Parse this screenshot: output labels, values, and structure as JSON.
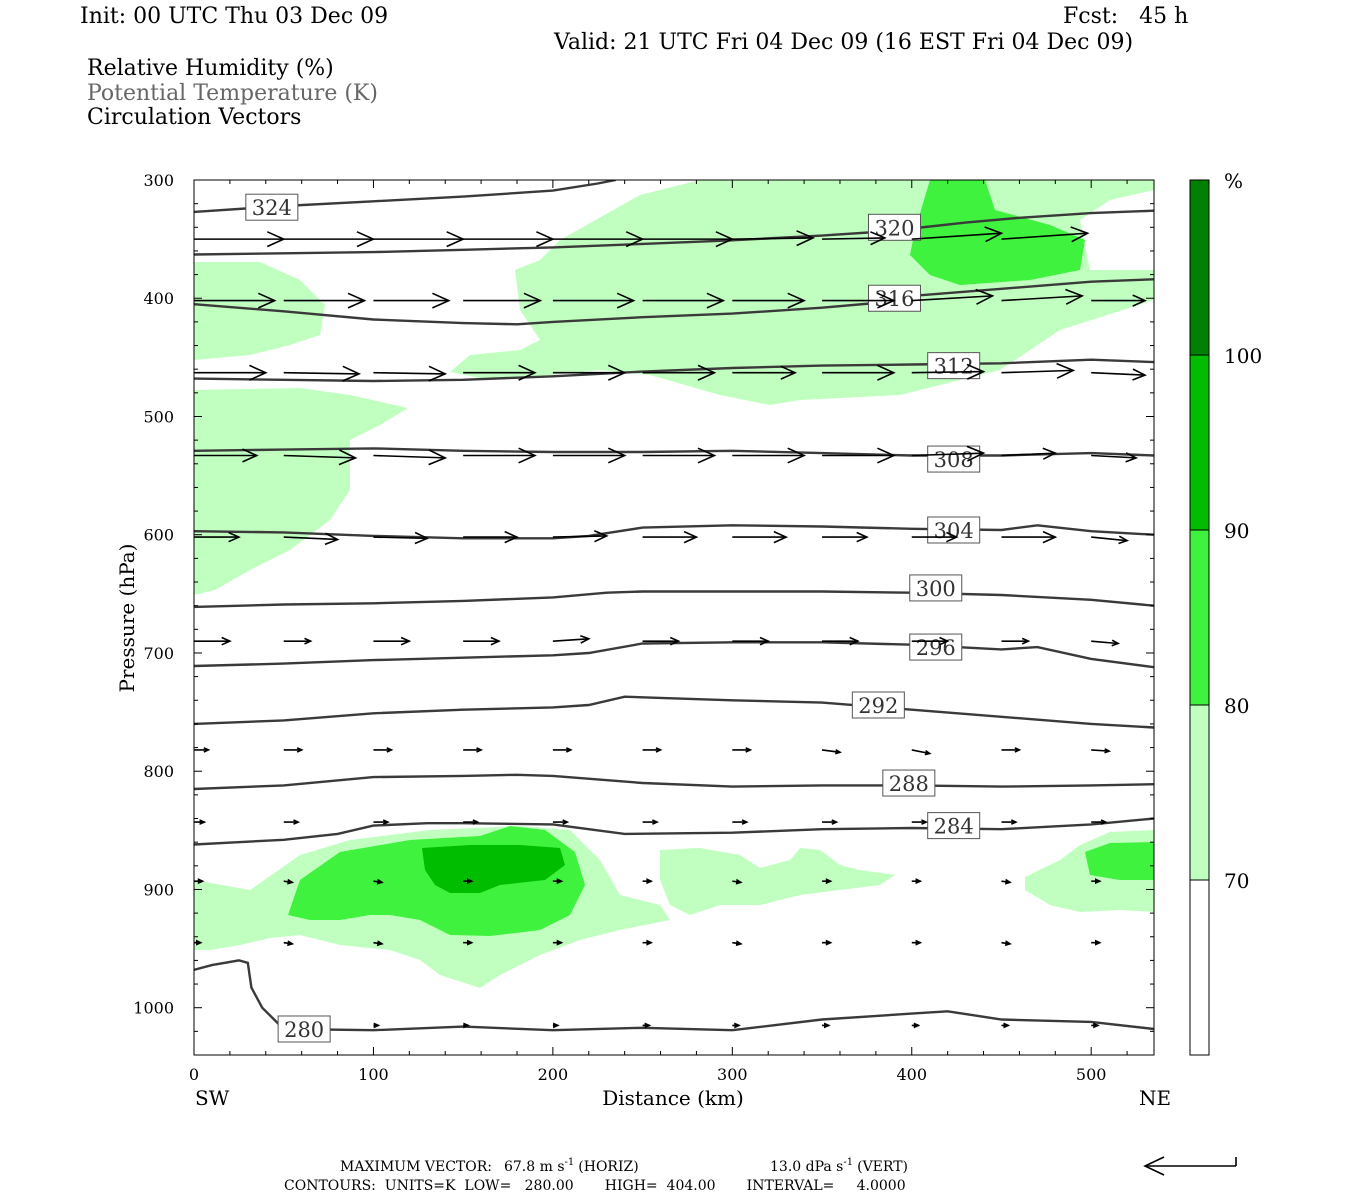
{
  "header": {
    "init": "Init: 00 UTC Thu 03 Dec 09",
    "fcst": "Fcst:   45 h",
    "valid": "Valid: 21 UTC Fri 04 Dec 09 (16 EST Fri 04 Dec 09)",
    "field_1": "Relative Humidity (%)",
    "field_2": "Potential Temperature (K)",
    "field_3": "Circulation Vectors"
  },
  "footer": {
    "max_vector_label": "MAXIMUM VECTOR:",
    "max_horiz": "67.8 m s",
    "horiz_unit": "(HORIZ)",
    "max_vert": "13.0 dPa s",
    "vert_unit": "(VERT)",
    "exponent": "-1",
    "contours_line": "CONTOURS:  UNITS=K  LOW=   280.00       HIGH=  404.00       INTERVAL=     4.0000"
  },
  "colors": {
    "rh_70_80": "#c0ffc0",
    "rh_80_90": "#3ef23e",
    "rh_90_100": "#00bd00",
    "rh_100": "#007f00",
    "theta_line": "#3a3a3a",
    "vector": "#000000"
  },
  "chart_data": {
    "type": "cross-section (contour + shaded + vectors)",
    "x_axis": {
      "label": "Distance (km)",
      "range": [
        0,
        535
      ],
      "ticks": [
        0,
        100,
        200,
        300,
        400,
        500
      ],
      "left_end_label": "SW",
      "right_end_label": "NE"
    },
    "y_axis": {
      "label": "Pressure (hPa)",
      "range": [
        300,
        1040
      ],
      "inverted": true,
      "ticks": [
        300,
        400,
        500,
        600,
        700,
        800,
        900,
        1000
      ]
    },
    "colorbar": {
      "unit": "%",
      "levels": [
        70,
        80,
        90,
        100
      ]
    },
    "theta_contours": [
      {
        "level": 324,
        "label": "324",
        "label_at": [
          30,
          323
        ],
        "points": [
          [
            0,
            327
          ],
          [
            50,
            322
          ],
          [
            100,
            318
          ],
          [
            150,
            314
          ],
          [
            200,
            309
          ],
          [
            225,
            303
          ],
          [
            235,
            300
          ]
        ]
      },
      {
        "level": 320,
        "label": "320",
        "label_at": [
          377,
          340
        ],
        "points": [
          [
            0,
            363
          ],
          [
            50,
            362
          ],
          [
            100,
            361
          ],
          [
            150,
            359
          ],
          [
            200,
            357
          ],
          [
            250,
            354
          ],
          [
            300,
            351
          ],
          [
            350,
            347
          ],
          [
            380,
            344
          ],
          [
            400,
            341
          ],
          [
            430,
            336
          ],
          [
            460,
            332
          ],
          [
            500,
            328
          ],
          [
            535,
            326
          ]
        ]
      },
      {
        "level": 316,
        "label": "316",
        "label_at": [
          377,
          400
        ],
        "points": [
          [
            0,
            405
          ],
          [
            50,
            411
          ],
          [
            100,
            418
          ],
          [
            150,
            421
          ],
          [
            180,
            422
          ],
          [
            200,
            420
          ],
          [
            250,
            416
          ],
          [
            300,
            413
          ],
          [
            350,
            408
          ],
          [
            380,
            404
          ],
          [
            400,
            398
          ],
          [
            450,
            392
          ],
          [
            500,
            386
          ],
          [
            535,
            384
          ]
        ]
      },
      {
        "level": 312,
        "label": "312",
        "label_at": [
          410,
          457
        ],
        "points": [
          [
            0,
            468
          ],
          [
            50,
            469
          ],
          [
            100,
            470
          ],
          [
            150,
            469
          ],
          [
            200,
            466
          ],
          [
            250,
            462
          ],
          [
            300,
            459
          ],
          [
            350,
            457
          ],
          [
            400,
            456
          ],
          [
            450,
            455
          ],
          [
            500,
            452
          ],
          [
            535,
            454
          ]
        ]
      },
      {
        "level": 308,
        "label": "308",
        "label_at": [
          410,
          536
        ],
        "points": [
          [
            0,
            529
          ],
          [
            50,
            528
          ],
          [
            100,
            527
          ],
          [
            150,
            529
          ],
          [
            200,
            530
          ],
          [
            250,
            530
          ],
          [
            300,
            529
          ],
          [
            350,
            531
          ],
          [
            400,
            533
          ],
          [
            450,
            533
          ],
          [
            500,
            531
          ],
          [
            535,
            533
          ]
        ]
      },
      {
        "level": 304,
        "label": "304",
        "label_at": [
          410,
          596
        ],
        "points": [
          [
            0,
            597
          ],
          [
            50,
            598
          ],
          [
            100,
            601
          ],
          [
            150,
            603
          ],
          [
            200,
            603
          ],
          [
            220,
            601
          ],
          [
            250,
            594
          ],
          [
            300,
            592
          ],
          [
            350,
            593
          ],
          [
            400,
            595
          ],
          [
            450,
            596
          ],
          [
            470,
            592
          ],
          [
            500,
            597
          ],
          [
            535,
            600
          ]
        ]
      },
      {
        "level": 300,
        "label": "300",
        "label_at": [
          400,
          645
        ],
        "points": [
          [
            0,
            661
          ],
          [
            50,
            659
          ],
          [
            100,
            658
          ],
          [
            150,
            656
          ],
          [
            200,
            653
          ],
          [
            230,
            649
          ],
          [
            250,
            648
          ],
          [
            300,
            648
          ],
          [
            350,
            648
          ],
          [
            400,
            649
          ],
          [
            450,
            651
          ],
          [
            500,
            655
          ],
          [
            535,
            660
          ]
        ]
      },
      {
        "level": 296,
        "label": "296",
        "label_at": [
          400,
          695
        ],
        "points": [
          [
            0,
            711
          ],
          [
            50,
            709
          ],
          [
            100,
            706
          ],
          [
            150,
            704
          ],
          [
            200,
            702
          ],
          [
            220,
            700
          ],
          [
            250,
            692
          ],
          [
            300,
            691
          ],
          [
            350,
            691
          ],
          [
            400,
            693
          ],
          [
            450,
            697
          ],
          [
            470,
            695
          ],
          [
            500,
            705
          ],
          [
            535,
            712
          ]
        ]
      },
      {
        "level": 292,
        "label": "292",
        "label_at": [
          368,
          744
        ],
        "points": [
          [
            0,
            760
          ],
          [
            50,
            757
          ],
          [
            100,
            751
          ],
          [
            150,
            748
          ],
          [
            200,
            746
          ],
          [
            220,
            744
          ],
          [
            240,
            737
          ],
          [
            260,
            738
          ],
          [
            300,
            740
          ],
          [
            350,
            742
          ],
          [
            400,
            748
          ],
          [
            450,
            754
          ],
          [
            500,
            760
          ],
          [
            535,
            763
          ]
        ]
      },
      {
        "level": 288,
        "label": "288",
        "label_at": [
          385,
          810
        ],
        "points": [
          [
            0,
            815
          ],
          [
            50,
            812
          ],
          [
            100,
            805
          ],
          [
            150,
            804
          ],
          [
            180,
            803
          ],
          [
            200,
            804
          ],
          [
            250,
            810
          ],
          [
            300,
            813
          ],
          [
            350,
            812
          ],
          [
            400,
            812
          ],
          [
            450,
            813
          ],
          [
            500,
            812
          ],
          [
            535,
            811
          ]
        ]
      },
      {
        "level": 284,
        "label": "284",
        "label_at": [
          410,
          846
        ],
        "points": [
          [
            0,
            862
          ],
          [
            50,
            858
          ],
          [
            80,
            853
          ],
          [
            100,
            846
          ],
          [
            130,
            844
          ],
          [
            150,
            844
          ],
          [
            200,
            845
          ],
          [
            240,
            853
          ],
          [
            300,
            852
          ],
          [
            350,
            849
          ],
          [
            400,
            848
          ],
          [
            450,
            849
          ],
          [
            500,
            845
          ],
          [
            535,
            840
          ]
        ]
      },
      {
        "level": 280,
        "label": "280",
        "label_at": [
          48,
          1018
        ],
        "points": [
          [
            0,
            968
          ],
          [
            10,
            964
          ],
          [
            25,
            960
          ],
          [
            30,
            962
          ],
          [
            32,
            983
          ],
          [
            38,
            1000
          ],
          [
            50,
            1018
          ],
          [
            100,
            1019
          ],
          [
            150,
            1016
          ],
          [
            200,
            1019
          ],
          [
            250,
            1017
          ],
          [
            300,
            1019
          ],
          [
            350,
            1010
          ],
          [
            400,
            1005
          ],
          [
            420,
            1003
          ],
          [
            450,
            1010
          ],
          [
            500,
            1012
          ],
          [
            535,
            1018
          ]
        ]
      }
    ],
    "vector_rows": [
      {
        "p": 350,
        "x": [
          0,
          50,
          100,
          150,
          200,
          250,
          300,
          350,
          400,
          450,
          500
        ],
        "dx": [
          50,
          50,
          50,
          50,
          50,
          50,
          45,
          35,
          50,
          48,
          0
        ],
        "dy": [
          0,
          0,
          0,
          0,
          0,
          0,
          -1,
          -1,
          -5,
          -5,
          0
        ]
      },
      {
        "p": 402,
        "x": [
          0,
          50,
          100,
          150,
          200,
          250,
          300,
          350,
          400,
          450,
          500
        ],
        "dx": [
          45,
          45,
          42,
          43,
          45,
          45,
          40,
          40,
          45,
          45,
          30
        ],
        "dy": [
          0,
          0,
          0,
          0,
          0,
          0,
          0,
          0,
          -4,
          -4,
          0
        ]
      },
      {
        "p": 463,
        "x": [
          0,
          50,
          100,
          150,
          200,
          250,
          300,
          350,
          400,
          450,
          500
        ],
        "dx": [
          40,
          42,
          40,
          40,
          40,
          40,
          35,
          40,
          40,
          40,
          30
        ],
        "dy": [
          0,
          1,
          1,
          0,
          0,
          0,
          0,
          0,
          -1,
          -2,
          2
        ]
      },
      {
        "p": 533,
        "x": [
          0,
          50,
          100,
          150,
          200,
          250,
          300,
          350,
          400,
          450,
          500
        ],
        "dx": [
          35,
          40,
          40,
          40,
          40,
          40,
          40,
          40,
          40,
          30,
          25
        ],
        "dy": [
          0,
          2,
          2,
          0,
          0,
          0,
          0,
          0,
          -2,
          -2,
          2
        ]
      },
      {
        "p": 602,
        "x": [
          0,
          50,
          100,
          150,
          200,
          250,
          300,
          350,
          400,
          450,
          500
        ],
        "dx": [
          25,
          30,
          30,
          30,
          30,
          30,
          30,
          25,
          25,
          30,
          20
        ],
        "dy": [
          0,
          2,
          1,
          0,
          -1,
          0,
          0,
          0,
          0,
          0,
          3
        ]
      },
      {
        "p": 690,
        "x": [
          0,
          50,
          100,
          150,
          200,
          250,
          300,
          350,
          400,
          450,
          500
        ],
        "dx": [
          20,
          15,
          20,
          20,
          20,
          20,
          20,
          20,
          20,
          15,
          15
        ],
        "dy": [
          0,
          0,
          0,
          0,
          -2,
          0,
          0,
          0,
          0,
          0,
          2
        ]
      },
      {
        "p": 782,
        "x": [
          0,
          50,
          100,
          150,
          200,
          250,
          300,
          350,
          400,
          450,
          500
        ],
        "dx": [
          8,
          10,
          10,
          10,
          10,
          10,
          10,
          10,
          10,
          10,
          10
        ],
        "dy": [
          0,
          0,
          0,
          0,
          0,
          0,
          0,
          2,
          3,
          0,
          1
        ]
      },
      {
        "p": 843,
        "x": [
          0,
          50,
          100,
          150,
          200,
          250,
          300,
          350,
          400,
          450,
          500
        ],
        "dx": [
          6,
          8,
          8,
          8,
          8,
          8,
          8,
          8,
          8,
          8,
          8
        ],
        "dy": [
          0,
          0,
          0,
          0,
          0,
          0,
          0,
          0,
          0,
          0,
          0
        ]
      },
      {
        "p": 893,
        "x": [
          0,
          50,
          100,
          150,
          200,
          250,
          300,
          350,
          400,
          450,
          500
        ],
        "dx": [
          5,
          5,
          5,
          5,
          5,
          5,
          5,
          5,
          5,
          5,
          5
        ],
        "dy": [
          0,
          1,
          1,
          0,
          0,
          0,
          1,
          0,
          0,
          1,
          0
        ]
      },
      {
        "p": 945,
        "x": [
          0,
          50,
          100,
          150,
          200,
          250,
          300,
          350,
          400,
          450,
          500
        ],
        "dx": [
          4,
          5,
          5,
          5,
          5,
          5,
          5,
          5,
          5,
          5,
          5
        ],
        "dy": [
          0,
          1,
          1,
          0,
          0,
          0,
          1,
          0,
          0,
          1,
          0
        ]
      },
      {
        "p": 1015,
        "x": [
          100,
          150,
          200,
          250,
          300,
          350,
          400,
          450,
          500
        ],
        "dx": [
          3,
          3,
          3,
          4,
          4,
          4,
          4,
          4,
          4
        ],
        "dy": [
          0,
          0,
          0,
          0,
          0,
          0,
          0,
          0,
          0
        ]
      }
    ]
  }
}
